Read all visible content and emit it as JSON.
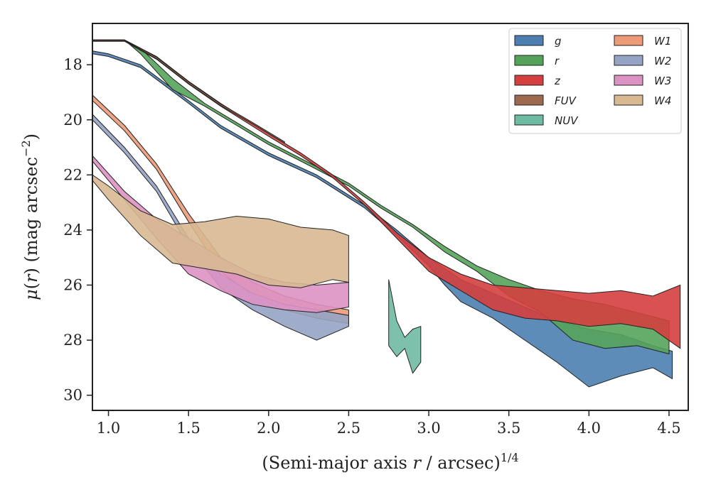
{
  "chart_data": {
    "type": "area",
    "xlabel": "(Semi-major axis r / arcsec)^1/4",
    "xlabel_parts": {
      "prefix": "(Semi-major axis ",
      "var": "r",
      "mid": " / arcsec)",
      "sup": "1/4"
    },
    "ylabel": "μ(r) (mag arcsec^−2)",
    "ylabel_parts": {
      "mu": "μ",
      "open": "(",
      "var": "r",
      "close": ") (mag arcsec",
      "sup": "−2",
      "end": ")"
    },
    "xlim": [
      0.9,
      4.62
    ],
    "ylim": [
      30.55,
      16.5
    ],
    "y_inverted": true,
    "xticks": [
      1.0,
      1.5,
      2.0,
      2.5,
      3.0,
      3.5,
      4.0,
      4.5
    ],
    "xtick_labels": [
      "1.0",
      "1.5",
      "2.0",
      "2.5",
      "3.0",
      "3.5",
      "4.0",
      "4.5"
    ],
    "yticks": [
      18,
      20,
      22,
      24,
      26,
      28,
      30
    ],
    "ytick_labels": [
      "18",
      "20",
      "22",
      "24",
      "26",
      "28",
      "30"
    ],
    "grid": false,
    "legend_placement": "top-right",
    "legend_columns": 2,
    "series": [
      {
        "name": "g",
        "color": "#4c7fb0",
        "upper": [
          [
            0.9,
            17.5
          ],
          [
            1.0,
            17.6
          ],
          [
            1.2,
            18.0
          ],
          [
            1.5,
            19.3
          ],
          [
            1.7,
            20.2
          ],
          [
            2.0,
            21.2
          ],
          [
            2.3,
            22.0
          ],
          [
            2.6,
            23.1
          ],
          [
            2.8,
            24.0
          ],
          [
            3.0,
            25.0
          ],
          [
            3.1,
            25.4
          ],
          [
            3.2,
            25.8
          ],
          [
            3.4,
            26.3
          ],
          [
            3.6,
            26.8
          ],
          [
            3.8,
            27.3
          ],
          [
            4.0,
            27.6
          ],
          [
            4.2,
            27.8
          ],
          [
            4.4,
            28.2
          ],
          [
            4.52,
            28.4
          ]
        ],
        "lower": [
          [
            0.9,
            17.6
          ],
          [
            1.0,
            17.7
          ],
          [
            1.2,
            18.1
          ],
          [
            1.5,
            19.4
          ],
          [
            1.7,
            20.3
          ],
          [
            2.0,
            21.3
          ],
          [
            2.3,
            22.1
          ],
          [
            2.6,
            23.2
          ],
          [
            2.8,
            24.2
          ],
          [
            3.0,
            25.3
          ],
          [
            3.1,
            26.0
          ],
          [
            3.2,
            26.6
          ],
          [
            3.4,
            27.2
          ],
          [
            3.6,
            28.0
          ],
          [
            3.8,
            28.8
          ],
          [
            4.0,
            29.7
          ],
          [
            4.2,
            29.3
          ],
          [
            4.4,
            29.0
          ],
          [
            4.52,
            29.4
          ]
        ]
      },
      {
        "name": "r",
        "color": "#55a35a",
        "upper": [
          [
            0.9,
            17.1
          ],
          [
            1.1,
            17.1
          ],
          [
            1.2,
            17.4
          ],
          [
            1.4,
            18.5
          ],
          [
            1.6,
            19.4
          ],
          [
            1.8,
            20.1
          ],
          [
            2.0,
            20.8
          ],
          [
            2.3,
            21.7
          ],
          [
            2.5,
            22.3
          ],
          [
            2.7,
            23.1
          ],
          [
            2.9,
            23.8
          ],
          [
            3.1,
            24.6
          ],
          [
            3.3,
            25.3
          ],
          [
            3.5,
            25.8
          ],
          [
            3.7,
            26.2
          ],
          [
            3.9,
            26.5
          ],
          [
            4.1,
            26.7
          ],
          [
            4.3,
            27.0
          ],
          [
            4.5,
            27.3
          ]
        ],
        "lower": [
          [
            0.9,
            17.1
          ],
          [
            1.1,
            17.1
          ],
          [
            1.2,
            17.6
          ],
          [
            1.4,
            18.9
          ],
          [
            1.6,
            19.5
          ],
          [
            1.8,
            20.2
          ],
          [
            2.0,
            20.9
          ],
          [
            2.3,
            21.8
          ],
          [
            2.5,
            22.4
          ],
          [
            2.7,
            23.2
          ],
          [
            2.9,
            23.9
          ],
          [
            3.1,
            24.8
          ],
          [
            3.3,
            25.5
          ],
          [
            3.5,
            26.4
          ],
          [
            3.7,
            27.0
          ],
          [
            3.9,
            28.0
          ],
          [
            4.1,
            28.3
          ],
          [
            4.3,
            28.2
          ],
          [
            4.5,
            28.5
          ]
        ]
      },
      {
        "name": "z",
        "color": "#d43f3f",
        "upper": [
          [
            0.9,
            17.1
          ],
          [
            1.1,
            17.1
          ],
          [
            1.3,
            17.7
          ],
          [
            1.5,
            18.6
          ],
          [
            1.7,
            19.4
          ],
          [
            2.0,
            20.5
          ],
          [
            2.2,
            21.2
          ],
          [
            2.4,
            22.0
          ],
          [
            2.6,
            23.0
          ],
          [
            2.8,
            24.1
          ],
          [
            3.0,
            25.0
          ],
          [
            3.2,
            25.6
          ],
          [
            3.4,
            26.0
          ],
          [
            3.6,
            26.1
          ],
          [
            3.8,
            26.2
          ],
          [
            4.0,
            26.3
          ],
          [
            4.2,
            26.2
          ],
          [
            4.4,
            26.4
          ],
          [
            4.57,
            26.0
          ]
        ],
        "lower": [
          [
            0.9,
            17.15
          ],
          [
            1.1,
            17.15
          ],
          [
            1.3,
            17.8
          ],
          [
            1.5,
            18.7
          ],
          [
            1.7,
            19.5
          ],
          [
            2.0,
            20.6
          ],
          [
            2.2,
            21.3
          ],
          [
            2.4,
            22.1
          ],
          [
            2.6,
            23.1
          ],
          [
            2.8,
            24.3
          ],
          [
            3.0,
            25.5
          ],
          [
            3.2,
            26.2
          ],
          [
            3.4,
            26.9
          ],
          [
            3.6,
            27.2
          ],
          [
            3.8,
            27.3
          ],
          [
            4.0,
            27.5
          ],
          [
            4.2,
            27.4
          ],
          [
            4.4,
            27.6
          ],
          [
            4.57,
            28.3
          ]
        ]
      },
      {
        "name": "FUV",
        "color": "#9c6a4e",
        "upper": [
          [
            0.9,
            17.1
          ],
          [
            1.1,
            17.1
          ],
          [
            1.3,
            17.72
          ],
          [
            1.5,
            18.62
          ],
          [
            1.7,
            19.42
          ],
          [
            1.9,
            20.1
          ],
          [
            2.1,
            20.8
          ]
        ],
        "lower": [
          [
            0.9,
            17.12
          ],
          [
            1.1,
            17.12
          ],
          [
            1.3,
            17.78
          ],
          [
            1.5,
            18.68
          ],
          [
            1.7,
            19.48
          ],
          [
            1.9,
            20.15
          ],
          [
            2.1,
            20.85
          ]
        ]
      },
      {
        "name": "NUV",
        "color": "#6fbaa3",
        "upper": [
          [
            2.75,
            25.8
          ],
          [
            2.8,
            27.3
          ],
          [
            2.85,
            27.9
          ],
          [
            2.9,
            27.6
          ],
          [
            2.95,
            27.5
          ]
        ],
        "lower": [
          [
            2.75,
            28.2
          ],
          [
            2.8,
            28.6
          ],
          [
            2.85,
            28.3
          ],
          [
            2.9,
            29.2
          ],
          [
            2.95,
            28.8
          ]
        ]
      },
      {
        "name": "W1",
        "color": "#ec9a78",
        "upper": [
          [
            0.9,
            19.1
          ],
          [
            1.1,
            20.2
          ],
          [
            1.3,
            21.6
          ],
          [
            1.5,
            23.4
          ],
          [
            1.7,
            25.0
          ],
          [
            1.9,
            25.9
          ],
          [
            2.1,
            26.4
          ],
          [
            2.3,
            26.7
          ],
          [
            2.5,
            26.9
          ]
        ],
        "lower": [
          [
            0.9,
            19.3
          ],
          [
            1.1,
            20.4
          ],
          [
            1.3,
            21.8
          ],
          [
            1.5,
            23.7
          ],
          [
            1.7,
            25.5
          ],
          [
            1.9,
            26.4
          ],
          [
            2.1,
            26.9
          ],
          [
            2.3,
            27.2
          ],
          [
            2.5,
            27.4
          ]
        ]
      },
      {
        "name": "W2",
        "color": "#95a4c4",
        "upper": [
          [
            0.9,
            19.8
          ],
          [
            1.1,
            21.0
          ],
          [
            1.3,
            22.4
          ],
          [
            1.5,
            24.3
          ],
          [
            1.7,
            25.6
          ],
          [
            1.9,
            26.3
          ],
          [
            2.1,
            26.7
          ],
          [
            2.3,
            26.9
          ],
          [
            2.5,
            27.1
          ]
        ],
        "lower": [
          [
            0.9,
            20.0
          ],
          [
            1.1,
            21.2
          ],
          [
            1.3,
            22.6
          ],
          [
            1.5,
            24.6
          ],
          [
            1.7,
            26.1
          ],
          [
            1.9,
            26.9
          ],
          [
            2.1,
            27.5
          ],
          [
            2.3,
            28.0
          ],
          [
            2.5,
            27.5
          ]
        ]
      },
      {
        "name": "W3",
        "color": "#dd92c4",
        "upper": [
          [
            0.9,
            21.3
          ],
          [
            1.1,
            22.6
          ],
          [
            1.3,
            23.6
          ],
          [
            1.5,
            24.3
          ],
          [
            1.7,
            25.0
          ],
          [
            1.9,
            25.6
          ],
          [
            2.1,
            25.9
          ],
          [
            2.3,
            26.0
          ],
          [
            2.5,
            25.9
          ]
        ],
        "lower": [
          [
            0.9,
            21.5
          ],
          [
            1.1,
            22.9
          ],
          [
            1.3,
            24.3
          ],
          [
            1.5,
            25.6
          ],
          [
            1.7,
            26.2
          ],
          [
            1.9,
            26.7
          ],
          [
            2.1,
            26.9
          ],
          [
            2.3,
            27.0
          ],
          [
            2.5,
            26.8
          ]
        ]
      },
      {
        "name": "W4",
        "color": "#d8b992",
        "upper": [
          [
            0.9,
            22.0
          ],
          [
            1.0,
            22.4
          ],
          [
            1.2,
            23.3
          ],
          [
            1.4,
            23.8
          ],
          [
            1.6,
            23.7
          ],
          [
            1.8,
            23.5
          ],
          [
            2.0,
            23.6
          ],
          [
            2.2,
            23.9
          ],
          [
            2.4,
            24.0
          ],
          [
            2.5,
            24.2
          ]
        ],
        "lower": [
          [
            0.9,
            22.2
          ],
          [
            1.0,
            22.9
          ],
          [
            1.2,
            24.2
          ],
          [
            1.4,
            25.2
          ],
          [
            1.6,
            25.4
          ],
          [
            1.8,
            25.6
          ],
          [
            2.0,
            26.0
          ],
          [
            2.2,
            26.1
          ],
          [
            2.4,
            25.8
          ],
          [
            2.5,
            25.9
          ]
        ]
      }
    ]
  }
}
